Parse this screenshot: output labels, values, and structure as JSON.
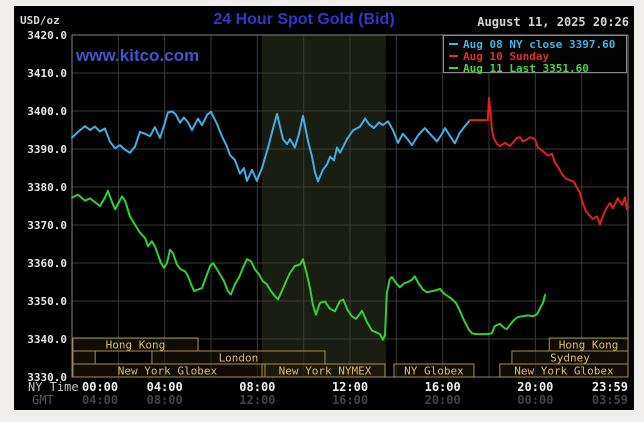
{
  "page": {
    "title": "24 Hour Spot Gold (Bid)",
    "datetime": "August 11, 2025 20:26",
    "watermark": "www.kitco.com",
    "y_axis_unit": "USD/oz"
  },
  "legend": {
    "items": [
      {
        "label": "Aug 08 NY close 3397.60",
        "color": "#3fb7e8"
      },
      {
        "label": "Aug 10 Sunday",
        "color": "#e03028"
      },
      {
        "label": "Aug 11 Last 3351.60",
        "color": "#41d941"
      }
    ]
  },
  "y_axis": {
    "ticks": [
      {
        "label": "3420.0",
        "value": 3420
      },
      {
        "label": "3410.0",
        "value": 3410
      },
      {
        "label": "3400.0",
        "value": 3400
      },
      {
        "label": "3390.0",
        "value": 3390
      },
      {
        "label": "3380.0",
        "value": 3380
      },
      {
        "label": "3370.0",
        "value": 3370
      },
      {
        "label": "3360.0",
        "value": 3360
      },
      {
        "label": "3350.0",
        "value": 3350
      },
      {
        "label": "3340.0",
        "value": 3340
      },
      {
        "label": "3330.0",
        "value": 3330
      }
    ]
  },
  "x_axis": {
    "ny_label": "NY Time",
    "gmt_label": "GMT",
    "ny_ticks": [
      "00:00",
      "04:00",
      "08:00",
      "12:00",
      "16:00",
      "20:00",
      "23:59"
    ],
    "gmt_ticks": [
      "04:00",
      "08:00",
      "12:00",
      "16:00",
      "20:00",
      "00:00",
      "03:59"
    ],
    "tick_hours": [
      0,
      4,
      8,
      12,
      16,
      20,
      24
    ]
  },
  "sessions": {
    "text_color": "#d9bc72",
    "border_color": "#a8904e",
    "fill_color": "rgba(30,22,6,0.55)",
    "rows": [
      [
        {
          "label": "Hong Kong",
          "from": 0.04,
          "to": 5.44
        },
        {
          "label": "Hong Kong",
          "from": 20.6,
          "to": 24
        }
      ],
      [
        {
          "label": "",
          "from": 0.04,
          "to": 1.0
        },
        {
          "label": "London",
          "from": 3.45,
          "to": 10.92
        },
        {
          "label": "Sydney",
          "from": 18.99,
          "to": 24
        }
      ],
      [
        {
          "label": "New York Globex",
          "from": 0.04,
          "to": 8.2
        },
        {
          "label": "New York NYMEX",
          "from": 8.33,
          "to": 13.51
        },
        {
          "label": "NY Globex",
          "from": 13.9,
          "to": 17.35
        },
        {
          "label": "New York Globex",
          "from": 18.47,
          "to": 24
        }
      ]
    ]
  },
  "chart_data": {
    "type": "line",
    "title": "24 Hour Spot Gold (Bid)",
    "xlabel": "NY Time (hours)",
    "ylabel": "USD/oz",
    "x_range": [
      0,
      24
    ],
    "ylim": [
      3330,
      3420
    ],
    "y_tick_step": 10,
    "grid_x_step_hours": 2,
    "grid_color": "#3a3a3a",
    "border_color": "#858585",
    "highlight_band": {
      "name": "New York NYMEX session",
      "x_from": 8.2,
      "x_to": 13.55,
      "color": "#191d12"
    },
    "series": [
      {
        "name": "Aug 08 NY close 3397.60",
        "color": "#42b0e8",
        "points": [
          [
            0,
            3393
          ],
          [
            0.26,
            3394.5
          ],
          [
            0.56,
            3396
          ],
          [
            0.78,
            3395
          ],
          [
            0.99,
            3395.9
          ],
          [
            1.21,
            3394.6
          ],
          [
            1.42,
            3395.4
          ],
          [
            1.64,
            3391.9
          ],
          [
            1.86,
            3390.2
          ],
          [
            2.07,
            3391
          ],
          [
            2.29,
            3389.8
          ],
          [
            2.5,
            3389
          ],
          [
            2.72,
            3390.6
          ],
          [
            2.93,
            3394.5
          ],
          [
            3.15,
            3394
          ],
          [
            3.37,
            3393.4
          ],
          [
            3.58,
            3395.8
          ],
          [
            3.8,
            3392.9
          ],
          [
            4.01,
            3396.9
          ],
          [
            4.14,
            3399.6
          ],
          [
            4.32,
            3399.9
          ],
          [
            4.49,
            3399
          ],
          [
            4.66,
            3396.9
          ],
          [
            4.83,
            3398.3
          ],
          [
            5.01,
            3397
          ],
          [
            5.18,
            3395
          ],
          [
            5.44,
            3398
          ],
          [
            5.61,
            3396.3
          ],
          [
            5.83,
            3399
          ],
          [
            6.0,
            3399.8
          ],
          [
            6.26,
            3396.6
          ],
          [
            6.47,
            3393.4
          ],
          [
            6.69,
            3390.6
          ],
          [
            6.82,
            3388.4
          ],
          [
            7.03,
            3387.1
          ],
          [
            7.25,
            3383.5
          ],
          [
            7.42,
            3385
          ],
          [
            7.55,
            3381.6
          ],
          [
            7.77,
            3384.5
          ],
          [
            7.98,
            3381.6
          ],
          [
            8.2,
            3385
          ],
          [
            8.46,
            3390.3
          ],
          [
            8.67,
            3395.3
          ],
          [
            8.85,
            3399.2
          ],
          [
            9.11,
            3392.6
          ],
          [
            9.28,
            3391.3
          ],
          [
            9.41,
            3392.6
          ],
          [
            9.62,
            3390.4
          ],
          [
            9.8,
            3394
          ],
          [
            9.97,
            3398.7
          ],
          [
            10.19,
            3392
          ],
          [
            10.36,
            3388
          ],
          [
            10.49,
            3383.8
          ],
          [
            10.62,
            3381.5
          ],
          [
            10.83,
            3384.5
          ],
          [
            11.01,
            3386
          ],
          [
            11.14,
            3388
          ],
          [
            11.31,
            3387
          ],
          [
            11.44,
            3390.4
          ],
          [
            11.57,
            3389
          ],
          [
            11.74,
            3391
          ],
          [
            11.87,
            3392.6
          ],
          [
            12.13,
            3394.9
          ],
          [
            12.43,
            3395.9
          ],
          [
            12.65,
            3398
          ],
          [
            12.82,
            3396.5
          ],
          [
            13.03,
            3395.5
          ],
          [
            13.25,
            3397
          ],
          [
            13.42,
            3396.3
          ],
          [
            13.64,
            3397.3
          ],
          [
            13.85,
            3395
          ],
          [
            14.07,
            3391.6
          ],
          [
            14.28,
            3394
          ],
          [
            14.5,
            3392.5
          ],
          [
            14.67,
            3391
          ],
          [
            14.93,
            3393.5
          ],
          [
            15.23,
            3395.5
          ],
          [
            15.45,
            3394
          ],
          [
            15.75,
            3392
          ],
          [
            15.92,
            3393.5
          ],
          [
            16.1,
            3395.5
          ],
          [
            16.31,
            3393.5
          ],
          [
            16.53,
            3391.5
          ],
          [
            16.74,
            3394.3
          ],
          [
            16.96,
            3396
          ],
          [
            17.18,
            3397.6
          ]
        ]
      },
      {
        "name": "Aug 10 Sunday",
        "color": "#e02318",
        "points": [
          [
            17.18,
            3397.6
          ],
          [
            17.95,
            3397.6
          ],
          [
            18.0,
            3403.5
          ],
          [
            18.08,
            3398.5
          ],
          [
            18.13,
            3395
          ],
          [
            18.21,
            3392.8
          ],
          [
            18.34,
            3391.4
          ],
          [
            18.47,
            3390.8
          ],
          [
            18.69,
            3391.6
          ],
          [
            18.9,
            3390.8
          ],
          [
            19.08,
            3392
          ],
          [
            19.21,
            3392.9
          ],
          [
            19.34,
            3393.1
          ],
          [
            19.46,
            3392
          ],
          [
            19.64,
            3392.5
          ],
          [
            19.77,
            3393.1
          ],
          [
            19.98,
            3392.6
          ],
          [
            20.11,
            3390.4
          ],
          [
            20.33,
            3389.4
          ],
          [
            20.54,
            3388.3
          ],
          [
            20.72,
            3388.7
          ],
          [
            20.85,
            3386.4
          ],
          [
            20.98,
            3385.3
          ],
          [
            21.15,
            3383.4
          ],
          [
            21.32,
            3382.2
          ],
          [
            21.49,
            3381.8
          ],
          [
            21.66,
            3381.4
          ],
          [
            21.79,
            3379.9
          ],
          [
            21.92,
            3378.6
          ],
          [
            22.05,
            3375.8
          ],
          [
            22.18,
            3373.8
          ],
          [
            22.31,
            3372.7
          ],
          [
            22.48,
            3371.6
          ],
          [
            22.66,
            3372.3
          ],
          [
            22.79,
            3370.2
          ],
          [
            22.92,
            3372.5
          ],
          [
            23.05,
            3374.2
          ],
          [
            23.22,
            3375.8
          ],
          [
            23.35,
            3374.4
          ],
          [
            23.56,
            3377.1
          ],
          [
            23.74,
            3375.3
          ],
          [
            23.87,
            3377.3
          ],
          [
            23.95,
            3374.2
          ],
          [
            24.0,
            3374.8
          ]
        ]
      },
      {
        "name": "Aug 11 Last 3351.60",
        "color": "#33d133",
        "points": [
          [
            0,
            3377.2
          ],
          [
            0.26,
            3378
          ],
          [
            0.56,
            3376.4
          ],
          [
            0.78,
            3377
          ],
          [
            0.99,
            3376
          ],
          [
            1.21,
            3375
          ],
          [
            1.42,
            3377.2
          ],
          [
            1.55,
            3379
          ],
          [
            1.73,
            3376
          ],
          [
            1.86,
            3374.1
          ],
          [
            1.99,
            3375.6
          ],
          [
            2.16,
            3377.5
          ],
          [
            2.29,
            3376.4
          ],
          [
            2.5,
            3372.3
          ],
          [
            2.72,
            3370.1
          ],
          [
            2.93,
            3368
          ],
          [
            3.15,
            3366.6
          ],
          [
            3.28,
            3364.4
          ],
          [
            3.45,
            3365.7
          ],
          [
            3.58,
            3364.4
          ],
          [
            3.71,
            3362.2
          ],
          [
            3.84,
            3360
          ],
          [
            3.97,
            3358.7
          ],
          [
            4.1,
            3360
          ],
          [
            4.23,
            3363.5
          ],
          [
            4.36,
            3362.6
          ],
          [
            4.53,
            3359.6
          ],
          [
            4.7,
            3358.3
          ],
          [
            4.88,
            3357.8
          ],
          [
            5.01,
            3356.5
          ],
          [
            5.14,
            3354.4
          ],
          [
            5.27,
            3352.6
          ],
          [
            5.44,
            3353
          ],
          [
            5.61,
            3353.4
          ],
          [
            5.78,
            3356.2
          ],
          [
            5.96,
            3359.2
          ],
          [
            6.09,
            3360
          ],
          [
            6.22,
            3358.7
          ],
          [
            6.39,
            3357
          ],
          [
            6.56,
            3355.2
          ],
          [
            6.73,
            3352.6
          ],
          [
            6.86,
            3351.7
          ],
          [
            7.03,
            3354.4
          ],
          [
            7.21,
            3356.2
          ],
          [
            7.38,
            3358.7
          ],
          [
            7.55,
            3361
          ],
          [
            7.72,
            3360.5
          ],
          [
            7.9,
            3358.3
          ],
          [
            8.07,
            3357
          ],
          [
            8.24,
            3355.2
          ],
          [
            8.41,
            3354.4
          ],
          [
            8.59,
            3352.6
          ],
          [
            8.76,
            3351.3
          ],
          [
            8.89,
            3350.4
          ],
          [
            9.06,
            3352.6
          ],
          [
            9.24,
            3355.2
          ],
          [
            9.41,
            3357.4
          ],
          [
            9.62,
            3359.2
          ],
          [
            9.84,
            3359.6
          ],
          [
            9.97,
            3361
          ],
          [
            10.14,
            3357
          ],
          [
            10.27,
            3353.5
          ],
          [
            10.4,
            3349
          ],
          [
            10.53,
            3346.4
          ],
          [
            10.7,
            3349.5
          ],
          [
            10.92,
            3349.9
          ],
          [
            11.13,
            3348
          ],
          [
            11.35,
            3347.3
          ],
          [
            11.57,
            3350
          ],
          [
            11.7,
            3350.4
          ],
          [
            11.91,
            3347.5
          ],
          [
            12.08,
            3346
          ],
          [
            12.26,
            3345.3
          ],
          [
            12.52,
            3347.4
          ],
          [
            12.73,
            3344.5
          ],
          [
            12.95,
            3342.2
          ],
          [
            13.12,
            3341.8
          ],
          [
            13.29,
            3341.3
          ],
          [
            13.42,
            3339.8
          ],
          [
            13.51,
            3341
          ],
          [
            13.59,
            3352
          ],
          [
            13.72,
            3355.8
          ],
          [
            13.81,
            3356.3
          ],
          [
            13.98,
            3354.8
          ],
          [
            14.15,
            3353.6
          ],
          [
            14.33,
            3354.6
          ],
          [
            14.5,
            3355
          ],
          [
            14.67,
            3355.6
          ],
          [
            14.8,
            3356.5
          ],
          [
            14.97,
            3354.5
          ],
          [
            15.15,
            3353
          ],
          [
            15.32,
            3352.3
          ],
          [
            15.53,
            3352.6
          ],
          [
            15.71,
            3352.8
          ],
          [
            15.88,
            3353.2
          ],
          [
            16.05,
            3352
          ],
          [
            16.22,
            3351.3
          ],
          [
            16.4,
            3350.5
          ],
          [
            16.57,
            3349.5
          ],
          [
            16.74,
            3347.5
          ],
          [
            16.87,
            3345.6
          ],
          [
            17.0,
            3344
          ],
          [
            17.13,
            3342.5
          ],
          [
            17.26,
            3341.5
          ],
          [
            17.43,
            3341.3
          ],
          [
            17.69,
            3341.3
          ],
          [
            17.95,
            3341.3
          ],
          [
            18.12,
            3341.5
          ],
          [
            18.25,
            3343.4
          ],
          [
            18.47,
            3344
          ],
          [
            18.64,
            3343
          ],
          [
            18.77,
            3342.6
          ],
          [
            18.94,
            3344
          ],
          [
            19.08,
            3345
          ],
          [
            19.25,
            3345.8
          ],
          [
            19.46,
            3346
          ],
          [
            19.68,
            3346.2
          ],
          [
            19.9,
            3346
          ],
          [
            20.07,
            3346.5
          ],
          [
            20.24,
            3348.5
          ],
          [
            20.33,
            3349.5
          ],
          [
            20.42,
            3351.6
          ]
        ]
      }
    ]
  }
}
